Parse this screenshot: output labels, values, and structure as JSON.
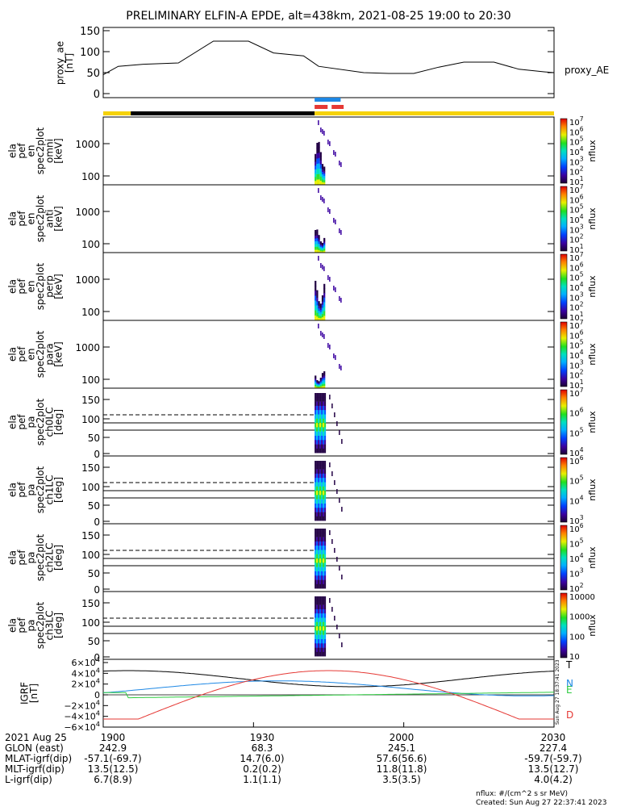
{
  "title": "PRELIMINARY ELFIN-A EPDE, alt=438km, 2021-08-25 19:00 to 20:30",
  "colors": {
    "black": "#000000",
    "yellow": "#f5d20a",
    "blue": "#1e88e5",
    "red": "#e53935",
    "green": "#2ecc40"
  },
  "chart_data": [
    {
      "type": "line",
      "ylabel": "proxy_ae\n[nT]",
      "legend": "proxy_AE",
      "ylim": [
        0,
        150
      ],
      "yticks": [
        0,
        50,
        100,
        150
      ],
      "x_minutes": [
        0,
        3,
        8,
        15,
        22,
        29,
        34,
        40,
        43,
        52,
        57,
        62,
        67,
        72,
        78,
        83,
        88,
        90
      ],
      "values": [
        45,
        65,
        70,
        73,
        125,
        125,
        97,
        90,
        65,
        50,
        48,
        48,
        63,
        75,
        75,
        58,
        52,
        50
      ]
    },
    {
      "type": "bar",
      "name": "science zones",
      "segments": [
        {
          "start": 0,
          "end": 5.5,
          "color": "yellow"
        },
        {
          "start": 5.5,
          "end": 42.2,
          "color": "black"
        },
        {
          "start": 42.2,
          "end": 90,
          "color": "yellow"
        }
      ],
      "blue": [
        {
          "start": 42.2,
          "end": 47.4
        }
      ],
      "red": [
        {
          "start": 42.2,
          "end": 44.8
        },
        {
          "start": 45.6,
          "end": 48.0
        }
      ]
    },
    {
      "type": "heatmap",
      "ylabel": "ela\npef\nen\nspec2plot\nomni\n[keV]",
      "yticks": [
        "1000",
        "100"
      ],
      "cbar_label": "nflux",
      "cbar_ticks": [
        "10^7",
        "10^6",
        "10^5",
        "10^4",
        "10^3",
        "10^2",
        "10^1"
      ]
    },
    {
      "type": "heatmap",
      "ylabel": "ela\npef\nen\nspec2plot\nanti\n[keV]",
      "yticks": [
        "1000",
        "100"
      ],
      "cbar_label": "nflux",
      "cbar_ticks": [
        "10^7",
        "10^6",
        "10^5",
        "10^4",
        "10^3",
        "10^2",
        "10^1"
      ]
    },
    {
      "type": "heatmap",
      "ylabel": "ela\npef\nen\nspec2plot\nperp\n[keV]",
      "yticks": [
        "1000",
        "100"
      ],
      "cbar_label": "nflux",
      "cbar_ticks": [
        "10^7",
        "10^6",
        "10^5",
        "10^4",
        "10^3",
        "10^2",
        "10^1"
      ]
    },
    {
      "type": "heatmap",
      "ylabel": "ela\npef\nen\nspec2plot\npara\n[keV]",
      "yticks": [
        "1000",
        "100"
      ],
      "cbar_label": "nflux",
      "cbar_ticks": [
        "10^7",
        "10^6",
        "10^5",
        "10^4",
        "10^3",
        "10^2",
        "10^1"
      ]
    },
    {
      "type": "heatmap",
      "ylabel": "ela\npef\npa\nspec2plot\nch0LC\n[deg]",
      "yticks": [
        "150",
        "100",
        "50",
        "0"
      ],
      "cbar_label": "nflux",
      "cbar_ticks": [
        "10^7",
        "10^6",
        "10^5",
        "10^4"
      ]
    },
    {
      "type": "heatmap",
      "ylabel": "ela\npef\npa\nspec2plot\nch1LC\n[deg]",
      "yticks": [
        "150",
        "100",
        "50",
        "0"
      ],
      "cbar_label": "nflux",
      "cbar_ticks": [
        "10^6",
        "10^5",
        "10^4",
        "10^3"
      ]
    },
    {
      "type": "heatmap",
      "ylabel": "ela\npef\npa\nspec2plot\nch2LC\n[deg]",
      "yticks": [
        "150",
        "100",
        "50",
        "0"
      ],
      "cbar_label": "nflux",
      "cbar_ticks": [
        "10^6",
        "10^5",
        "10^4",
        "10^3",
        "10^2"
      ]
    },
    {
      "type": "heatmap",
      "ylabel": "ela\npef\npa\nspec2plot\nch3LC\n[deg]",
      "yticks": [
        "150",
        "100",
        "50",
        "0"
      ],
      "cbar_label": "nflux",
      "cbar_ticks": [
        "10000",
        "1000",
        "100",
        "10"
      ]
    },
    {
      "type": "line",
      "ylabel": "IGRF\n[nT]",
      "yticks": [
        "6×10^4",
        "4×10^4",
        "2×10^4",
        "0",
        "−2×10^4",
        "−4×10^4",
        "−6×10^4"
      ],
      "ylim": [
        -60000,
        60000
      ],
      "series_labels": [
        "T",
        "N",
        "E",
        "D"
      ],
      "side_note": "Sun Aug 27 18:37:41 2023"
    }
  ],
  "xaxis": {
    "labels": [
      "1900",
      "1930",
      "2000",
      "2030"
    ],
    "rows": [
      {
        "name": "2021 Aug 25",
        "values": [
          "",
          "",
          "",
          ""
        ]
      },
      {
        "name": "GLON (east)",
        "values": [
          "242.9",
          "68.3",
          "245.1",
          "227.4"
        ]
      },
      {
        "name": "MLAT-igrf(dip)",
        "values": [
          "-57.1(-69.7)",
          "14.7(6.0)",
          "57.6(56.6)",
          "-59.7(-59.7)"
        ]
      },
      {
        "name": "MLT-igrf(dip)",
        "values": [
          "13.5(12.5)",
          "0.2(0.2)",
          "11.8(11.8)",
          "13.5(12.7)"
        ]
      },
      {
        "name": "L-igrf(dip)",
        "values": [
          "6.7(8.9)",
          "1.1(1.1)",
          "3.5(3.5)",
          "4.0(4.2)"
        ]
      }
    ]
  },
  "footer": {
    "units": "nflux: #/(cm^2 s sr MeV)",
    "created": "Created: Sun Aug 27 22:37:41 2023"
  }
}
